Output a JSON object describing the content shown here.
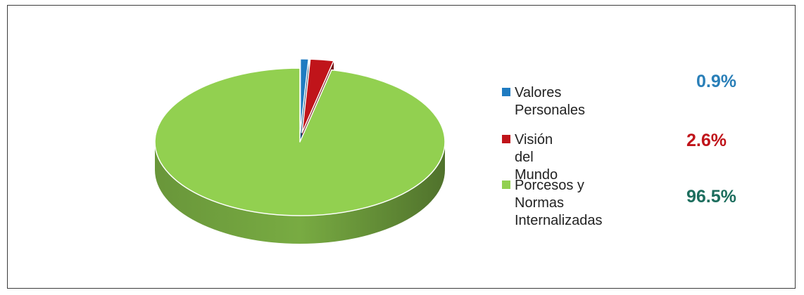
{
  "chart_data": {
    "type": "pie",
    "categories": [
      "Valores Personales",
      "Visión del Mundo",
      "Porcesos y Normas\nInternalizadas"
    ],
    "values": [
      0.9,
      2.6,
      96.5
    ],
    "value_labels": [
      "0.9%",
      "2.6%",
      "96.5%"
    ],
    "colors": [
      "#1f7bc1",
      "#c0141a",
      "#92d050"
    ],
    "value_colors": [
      "#2a7fb8",
      "#c0141a",
      "#1d6e5e"
    ],
    "exploded": [
      true,
      true,
      false
    ],
    "style": "3d",
    "legend": "right",
    "title": ""
  }
}
